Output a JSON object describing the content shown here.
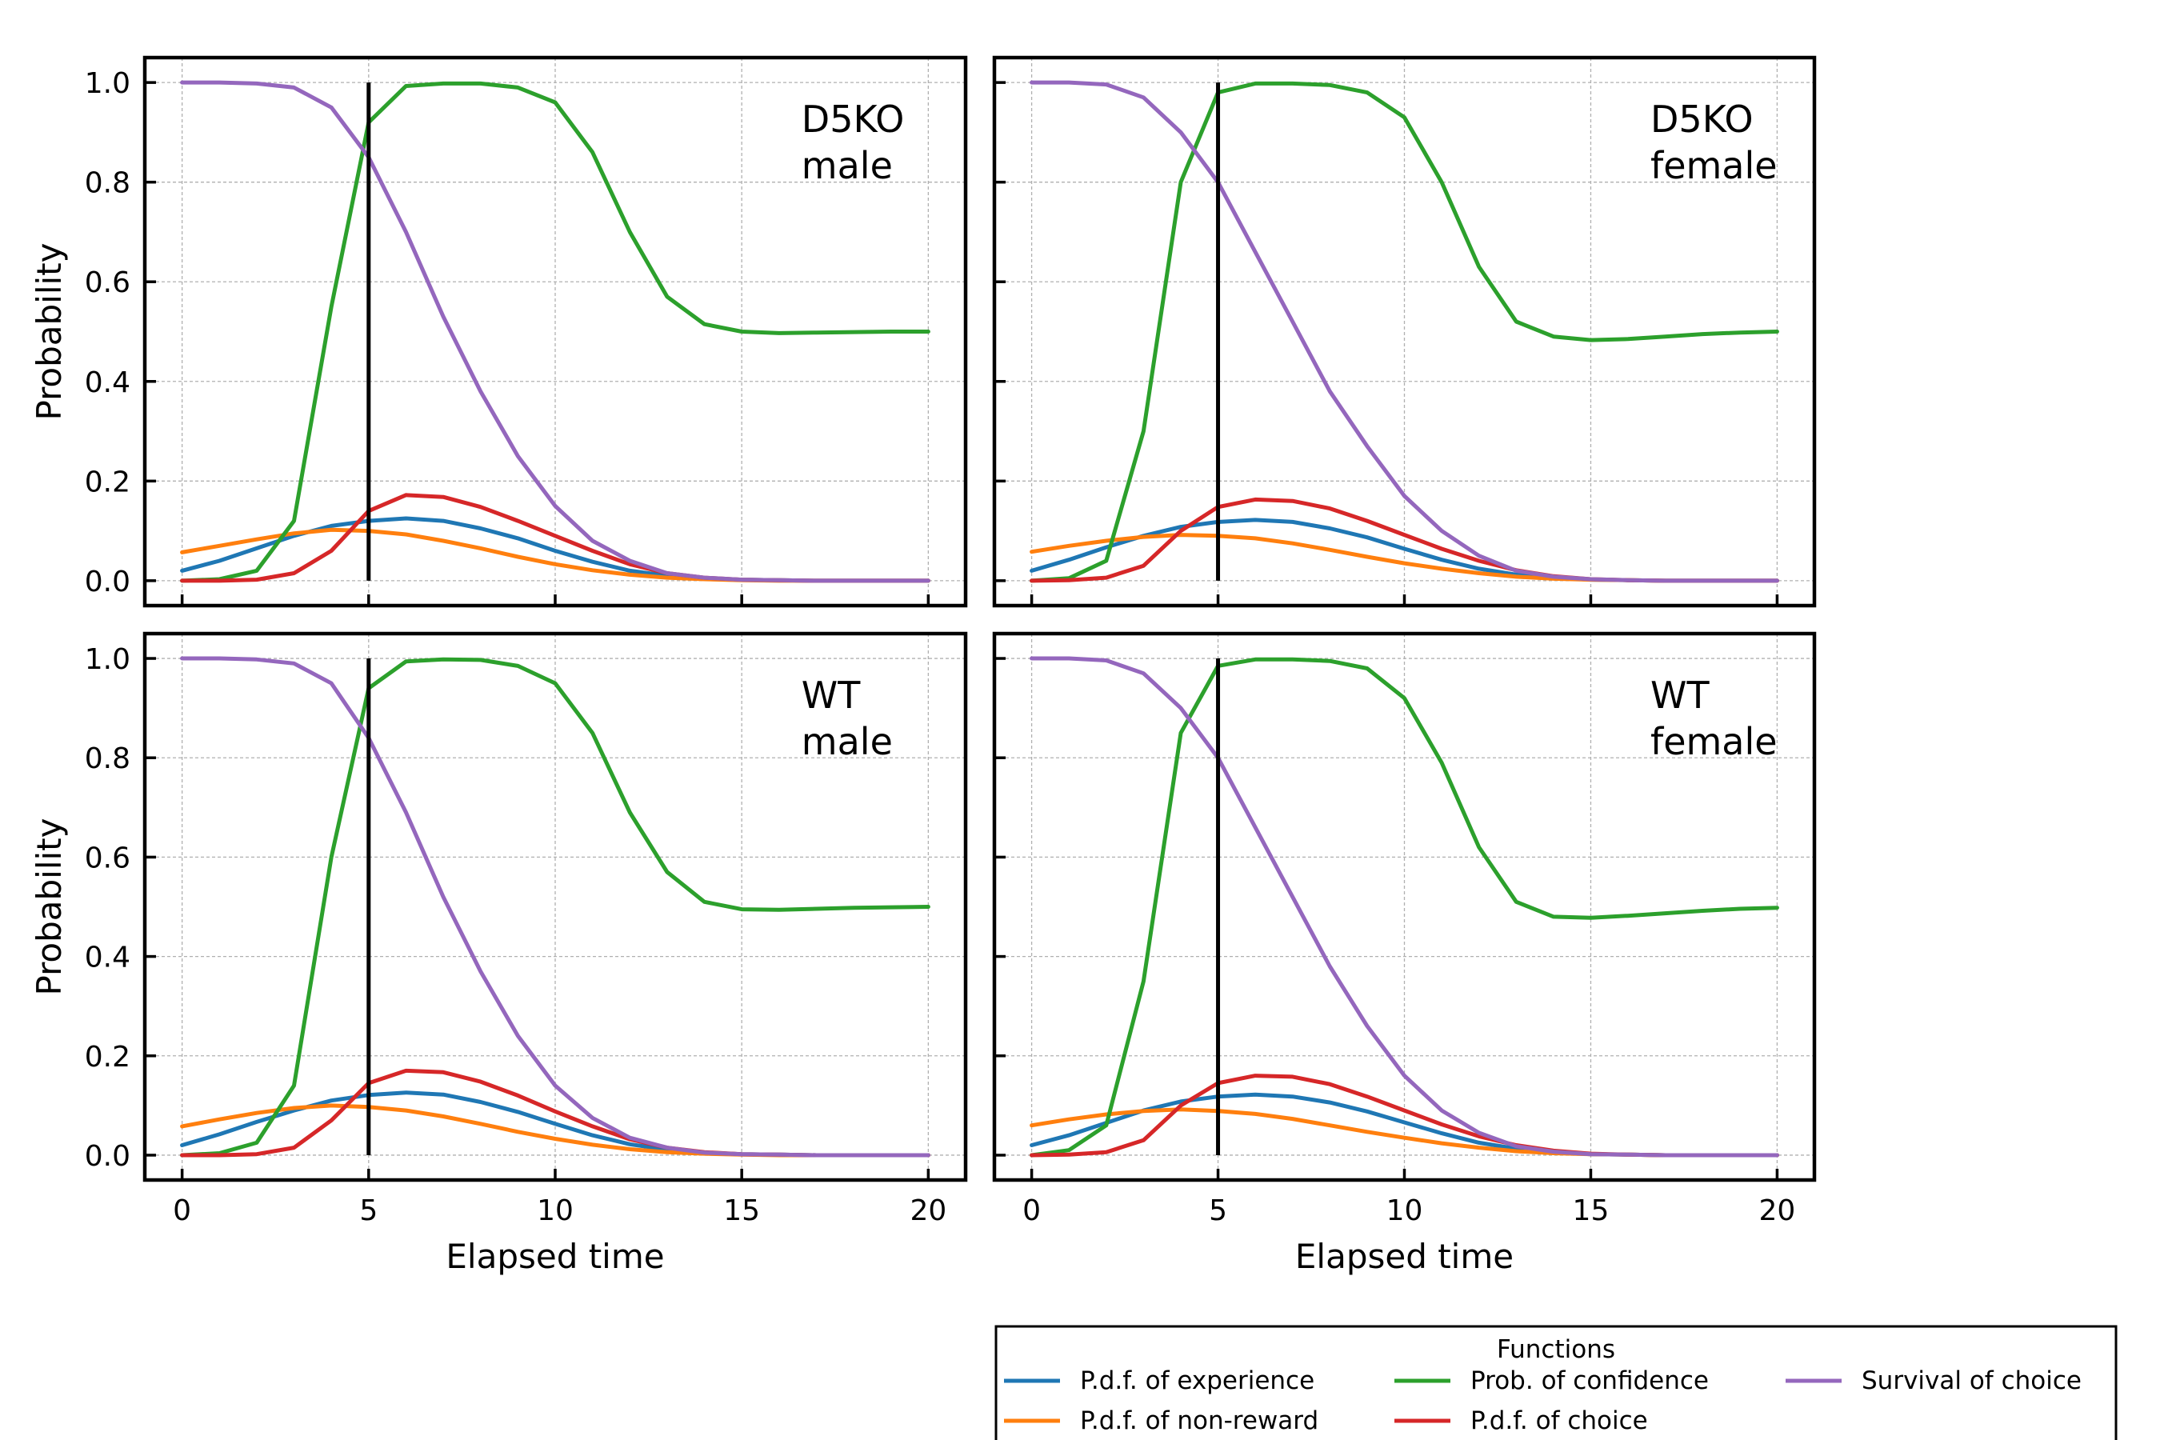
{
  "figure": {
    "legend_title": "Functions",
    "x_axis_label": "Elapsed time",
    "y_axis_label": "Probability"
  },
  "chart_data": {
    "type": "line",
    "layout": "2x2 small multiples",
    "xlim": [
      -1,
      21
    ],
    "ylim": [
      -0.05,
      1.05
    ],
    "x_ticks": [
      0,
      5,
      10,
      15,
      20
    ],
    "y_ticks": [
      0.0,
      0.2,
      0.4,
      0.6,
      0.8,
      1.0
    ],
    "grid": true,
    "legend_placement": "bottom-right, below panels",
    "reference_line_x": 5,
    "series_styles": [
      {
        "key": "experience",
        "name": "P.d.f. of experience",
        "color": "#1f77b4"
      },
      {
        "key": "nonreward",
        "name": "P.d.f. of non-reward",
        "color": "#ff7f0e"
      },
      {
        "key": "confidence",
        "name": "Prob. of confidence",
        "color": "#2ca02c"
      },
      {
        "key": "choice_pdf",
        "name": "P.d.f. of choice",
        "color": "#d62728"
      },
      {
        "key": "survival",
        "name": "Survival of choice",
        "color": "#9467bd"
      }
    ],
    "x": [
      0,
      1,
      2,
      3,
      4,
      5,
      6,
      7,
      8,
      9,
      10,
      11,
      12,
      13,
      14,
      15,
      16,
      17,
      18,
      19,
      20
    ],
    "panels": [
      {
        "label_line1": "D5KO",
        "label_line2": "male",
        "series": {
          "experience": [
            0.02,
            0.04,
            0.065,
            0.09,
            0.11,
            0.12,
            0.125,
            0.12,
            0.105,
            0.085,
            0.06,
            0.038,
            0.02,
            0.01,
            0.005,
            0.002,
            0.001,
            0.0,
            0.0,
            0.0,
            0.0
          ],
          "nonreward": [
            0.057,
            0.07,
            0.083,
            0.095,
            0.102,
            0.1,
            0.093,
            0.08,
            0.065,
            0.048,
            0.033,
            0.021,
            0.012,
            0.006,
            0.003,
            0.001,
            0.0,
            0.0,
            0.0,
            0.0,
            0.0
          ],
          "confidence": [
            0.0,
            0.003,
            0.02,
            0.12,
            0.55,
            0.92,
            0.993,
            0.998,
            0.998,
            0.99,
            0.96,
            0.86,
            0.7,
            0.57,
            0.515,
            0.5,
            0.497,
            0.498,
            0.499,
            0.5,
            0.5
          ],
          "choice_pdf": [
            0.0,
            0.0,
            0.002,
            0.015,
            0.06,
            0.14,
            0.172,
            0.168,
            0.148,
            0.12,
            0.09,
            0.06,
            0.033,
            0.015,
            0.006,
            0.002,
            0.001,
            0.0,
            0.0,
            0.0,
            0.0
          ],
          "survival": [
            1.0,
            1.0,
            0.998,
            0.99,
            0.95,
            0.85,
            0.7,
            0.53,
            0.38,
            0.25,
            0.15,
            0.08,
            0.04,
            0.015,
            0.006,
            0.002,
            0.001,
            0.0,
            0.0,
            0.0,
            0.0
          ]
        }
      },
      {
        "label_line1": "D5KO",
        "label_line2": "female",
        "series": {
          "experience": [
            0.02,
            0.042,
            0.067,
            0.09,
            0.108,
            0.118,
            0.122,
            0.118,
            0.105,
            0.087,
            0.064,
            0.042,
            0.024,
            0.012,
            0.006,
            0.002,
            0.001,
            0.0,
            0.0,
            0.0,
            0.0
          ],
          "nonreward": [
            0.058,
            0.07,
            0.08,
            0.088,
            0.092,
            0.09,
            0.085,
            0.075,
            0.062,
            0.048,
            0.035,
            0.024,
            0.015,
            0.008,
            0.004,
            0.002,
            0.001,
            0.0,
            0.0,
            0.0,
            0.0
          ],
          "confidence": [
            0.0,
            0.005,
            0.04,
            0.3,
            0.8,
            0.98,
            0.998,
            0.998,
            0.995,
            0.98,
            0.93,
            0.8,
            0.63,
            0.52,
            0.49,
            0.483,
            0.485,
            0.49,
            0.495,
            0.498,
            0.5
          ],
          "choice_pdf": [
            0.0,
            0.001,
            0.006,
            0.03,
            0.1,
            0.148,
            0.163,
            0.16,
            0.145,
            0.12,
            0.092,
            0.064,
            0.04,
            0.021,
            0.009,
            0.003,
            0.001,
            0.0,
            0.0,
            0.0,
            0.0
          ],
          "survival": [
            1.0,
            1.0,
            0.996,
            0.97,
            0.9,
            0.8,
            0.66,
            0.52,
            0.38,
            0.27,
            0.17,
            0.1,
            0.05,
            0.02,
            0.008,
            0.003,
            0.001,
            0.0,
            0.0,
            0.0,
            0.0
          ]
        }
      },
      {
        "label_line1": "WT",
        "label_line2": "male",
        "series": {
          "experience": [
            0.02,
            0.042,
            0.067,
            0.09,
            0.11,
            0.121,
            0.126,
            0.122,
            0.107,
            0.087,
            0.063,
            0.04,
            0.022,
            0.011,
            0.005,
            0.002,
            0.001,
            0.0,
            0.0,
            0.0,
            0.0
          ],
          "nonreward": [
            0.058,
            0.072,
            0.085,
            0.095,
            0.1,
            0.097,
            0.09,
            0.078,
            0.063,
            0.047,
            0.033,
            0.021,
            0.012,
            0.006,
            0.003,
            0.001,
            0.0,
            0.0,
            0.0,
            0.0,
            0.0
          ],
          "confidence": [
            0.0,
            0.004,
            0.025,
            0.14,
            0.6,
            0.94,
            0.994,
            0.998,
            0.997,
            0.985,
            0.95,
            0.85,
            0.69,
            0.57,
            0.51,
            0.495,
            0.494,
            0.496,
            0.498,
            0.499,
            0.5
          ],
          "choice_pdf": [
            0.0,
            0.0,
            0.002,
            0.015,
            0.07,
            0.145,
            0.17,
            0.167,
            0.148,
            0.12,
            0.088,
            0.058,
            0.032,
            0.015,
            0.006,
            0.002,
            0.001,
            0.0,
            0.0,
            0.0,
            0.0
          ],
          "survival": [
            1.0,
            1.0,
            0.998,
            0.99,
            0.95,
            0.84,
            0.69,
            0.52,
            0.37,
            0.24,
            0.14,
            0.075,
            0.035,
            0.015,
            0.005,
            0.002,
            0.001,
            0.0,
            0.0,
            0.0,
            0.0
          ]
        }
      },
      {
        "label_line1": "WT",
        "label_line2": "female",
        "series": {
          "experience": [
            0.02,
            0.04,
            0.065,
            0.09,
            0.108,
            0.118,
            0.122,
            0.118,
            0.106,
            0.088,
            0.066,
            0.044,
            0.025,
            0.013,
            0.006,
            0.002,
            0.001,
            0.0,
            0.0,
            0.0,
            0.0
          ],
          "nonreward": [
            0.06,
            0.072,
            0.082,
            0.089,
            0.092,
            0.089,
            0.083,
            0.073,
            0.06,
            0.047,
            0.035,
            0.024,
            0.015,
            0.008,
            0.004,
            0.002,
            0.001,
            0.0,
            0.0,
            0.0,
            0.0
          ],
          "confidence": [
            0.0,
            0.01,
            0.06,
            0.35,
            0.85,
            0.985,
            0.998,
            0.998,
            0.995,
            0.98,
            0.92,
            0.79,
            0.62,
            0.51,
            0.48,
            0.478,
            0.482,
            0.487,
            0.492,
            0.496,
            0.498
          ],
          "choice_pdf": [
            0.0,
            0.001,
            0.006,
            0.03,
            0.1,
            0.145,
            0.16,
            0.158,
            0.143,
            0.118,
            0.09,
            0.062,
            0.038,
            0.02,
            0.009,
            0.003,
            0.001,
            0.0,
            0.0,
            0.0,
            0.0
          ],
          "survival": [
            1.0,
            1.0,
            0.996,
            0.97,
            0.9,
            0.8,
            0.66,
            0.52,
            0.38,
            0.26,
            0.16,
            0.09,
            0.045,
            0.018,
            0.007,
            0.002,
            0.001,
            0.0,
            0.0,
            0.0,
            0.0
          ]
        }
      }
    ]
  }
}
